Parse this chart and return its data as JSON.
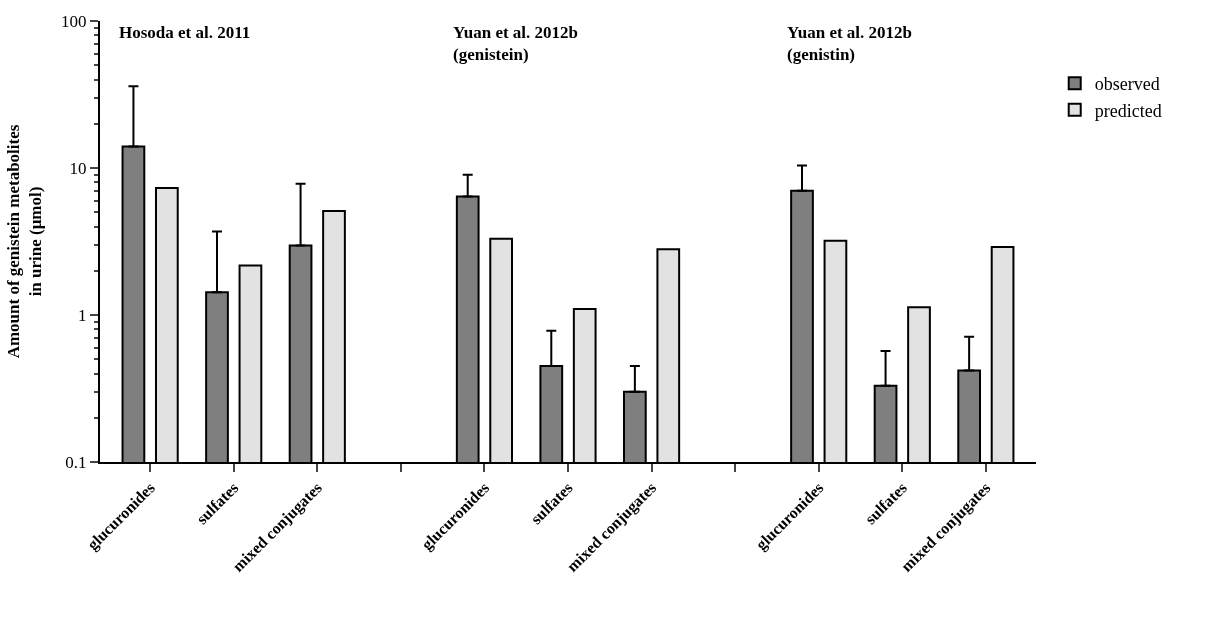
{
  "chart_data": {
    "type": "bar",
    "ylabel": "Amount of genistein metabolites\nin urine (μmol)",
    "categories": [
      "glucuronides",
      "sulfates",
      "mixed conjugates",
      null,
      "glucuronides",
      "sulfates",
      "mixed conjugates",
      null,
      "glucuronides",
      "sulfates",
      "mixed conjugates"
    ],
    "series": [
      {
        "name": "observed",
        "color": "#7f7f7f",
        "values": [
          14.0,
          1.43,
          2.97,
          null,
          6.4,
          0.45,
          0.3,
          null,
          7.0,
          0.33,
          0.42
        ],
        "errors": [
          [
            14.0,
            36
          ],
          [
            1.43,
            3.7
          ],
          [
            2.97,
            7.8
          ],
          null,
          [
            6.4,
            9.0
          ],
          [
            0.45,
            0.78
          ],
          [
            0.3,
            0.45
          ],
          null,
          [
            7.0,
            10.4
          ],
          [
            0.33,
            0.57
          ],
          [
            0.42,
            0.71
          ]
        ]
      },
      {
        "name": "predicted",
        "color": "#e2e2e2",
        "values": [
          7.3,
          2.17,
          5.1,
          null,
          3.3,
          1.1,
          2.8,
          null,
          3.2,
          1.13,
          2.9
        ]
      }
    ],
    "log": "y",
    "ylim": [
      0.1,
      100
    ],
    "yticks": [
      0.1,
      1,
      10,
      100
    ],
    "legend": "top right",
    "annotations": [
      "Hosoda et al. 2011",
      "Yuan et al. 2012b\n(genistein)",
      "Yuan et al. 2012b\n(genistin)"
    ]
  }
}
